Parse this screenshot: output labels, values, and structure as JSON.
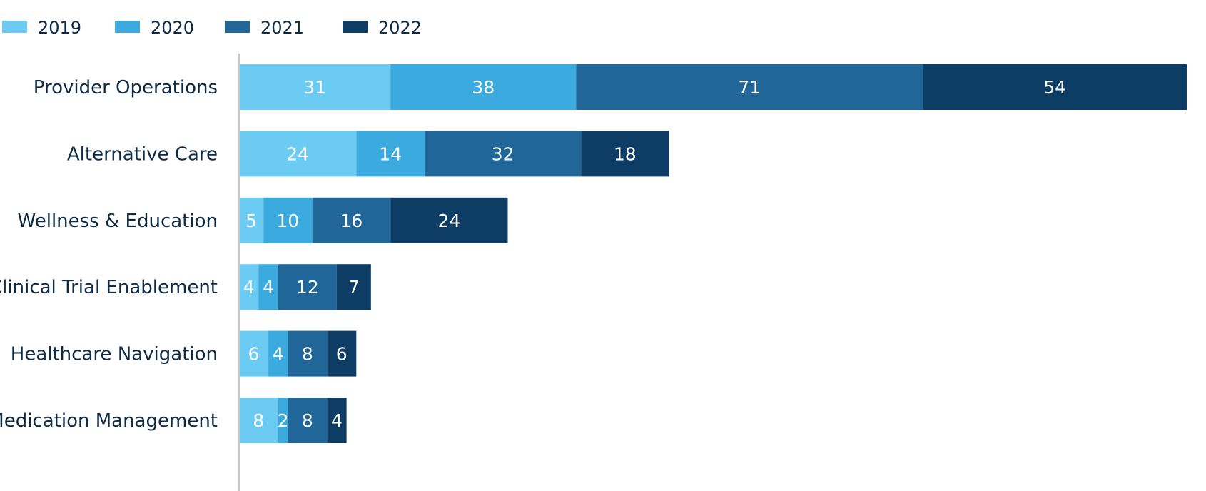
{
  "chart_data": {
    "type": "bar",
    "orientation": "horizontal",
    "stacked": true,
    "categories": [
      "Provider Operations",
      "Alternative Care",
      "Wellness & Education",
      "Clinical Trial Enablement",
      "Healthcare Navigation",
      "Medication Management"
    ],
    "series": [
      {
        "name": "2019",
        "color": "#6ccbf2",
        "values": [
          31,
          24,
          5,
          4,
          6,
          8
        ]
      },
      {
        "name": "2020",
        "color": "#3aaadf",
        "values": [
          38,
          14,
          10,
          4,
          4,
          2
        ]
      },
      {
        "name": "2021",
        "color": "#206699",
        "values": [
          71,
          32,
          16,
          12,
          8,
          8
        ]
      },
      {
        "name": "2022",
        "color": "#0d3c65",
        "values": [
          54,
          18,
          24,
          7,
          6,
          4
        ]
      }
    ],
    "title": "",
    "xlabel": "",
    "ylabel": "",
    "xlim": [
      0,
      194
    ],
    "grid": false,
    "legend": "top-left",
    "data_labels": true
  }
}
